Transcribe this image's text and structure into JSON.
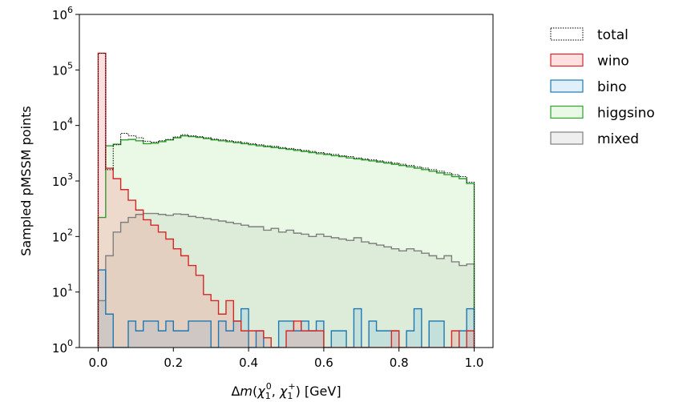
{
  "chart_data": {
    "type": "histogram",
    "xlabel_parts": [
      "Δ",
      "m",
      "(",
      "χ",
      "1",
      "0",
      ", ",
      "χ",
      "1",
      "+",
      ") [GeV]"
    ],
    "ylabel": "Sampled pMSSM points",
    "xlim": [
      -0.05,
      1.05
    ],
    "ylim": [
      1,
      1000000
    ],
    "yscale": "log",
    "bins": {
      "start": 0.0,
      "end": 1.0,
      "count": 50
    },
    "xticks": [
      0.0,
      0.2,
      0.4,
      0.6,
      0.8,
      1.0
    ],
    "xtick_labels": [
      "0.0",
      "0.2",
      "0.4",
      "0.6",
      "0.8",
      "1.0"
    ],
    "ytick_base": "10",
    "ytick_exponents": [
      "0",
      "1",
      "2",
      "3",
      "4",
      "5",
      "6"
    ],
    "legend_position": "outside-right",
    "series": [
      {
        "name": "total",
        "style": "dotted",
        "edge": "#000000",
        "fill": "none",
        "values": [
          200000,
          1600,
          4500,
          7200,
          6500,
          6000,
          5200,
          5000,
          5300,
          5600,
          6200,
          6800,
          6500,
          6300,
          6000,
          5700,
          5500,
          5300,
          5100,
          4900,
          4700,
          4500,
          4300,
          4200,
          4000,
          3850,
          3700,
          3550,
          3400,
          3250,
          3100,
          3000,
          2850,
          2750,
          2600,
          2500,
          2400,
          2300,
          2200,
          2100,
          2000,
          1900,
          1800,
          1700,
          1600,
          1500,
          1400,
          1300,
          1200,
          950
        ]
      },
      {
        "name": "wino",
        "style": "solid",
        "edge": "#d62728",
        "fill": "rgba(255,100,100,0.20)",
        "values": [
          200000,
          1700,
          1100,
          700,
          450,
          300,
          200,
          160,
          120,
          90,
          60,
          45,
          30,
          20,
          9,
          7,
          4,
          7,
          3,
          2,
          2,
          2,
          1.5,
          1,
          1,
          2,
          3,
          2,
          2,
          2,
          1,
          1,
          1,
          1,
          1,
          1,
          1,
          1,
          1,
          2,
          1,
          1,
          1,
          1,
          1,
          1,
          1,
          2,
          1,
          2
        ]
      },
      {
        "name": "bino",
        "style": "solid",
        "edge": "#1f77b4",
        "fill": "rgba(100,180,230,0.20)",
        "values": [
          25,
          4,
          1,
          1,
          3,
          2,
          3,
          3,
          2,
          3,
          2,
          2,
          3,
          3,
          3,
          1,
          3,
          2,
          3,
          5,
          1,
          2,
          1,
          1,
          3,
          3,
          2,
          3,
          2,
          3,
          1,
          2,
          2,
          1,
          5,
          1,
          3,
          2,
          2,
          2,
          1,
          2,
          5,
          1,
          3,
          3,
          1,
          1,
          2,
          5
        ]
      },
      {
        "name": "higgsino",
        "style": "solid",
        "edge": "#2ca02c",
        "fill": "rgba(150,220,130,0.20)",
        "values": [
          220,
          4300,
          4600,
          5500,
          5600,
          5300,
          4700,
          4800,
          5100,
          5500,
          6000,
          6500,
          6300,
          6100,
          5800,
          5500,
          5300,
          5100,
          4900,
          4700,
          4500,
          4300,
          4150,
          4000,
          3850,
          3700,
          3550,
          3400,
          3250,
          3100,
          3000,
          2850,
          2750,
          2600,
          2500,
          2400,
          2300,
          2200,
          2100,
          2000,
          1900,
          1800,
          1700,
          1600,
          1500,
          1400,
          1300,
          1200,
          1100,
          900
        ]
      },
      {
        "name": "mixed",
        "style": "solid",
        "edge": "#7f7f7f",
        "fill": "rgba(190,190,190,0.25)",
        "values": [
          7,
          45,
          120,
          180,
          220,
          250,
          260,
          260,
          250,
          240,
          255,
          250,
          230,
          220,
          210,
          200,
          190,
          180,
          170,
          160,
          150,
          150,
          130,
          140,
          120,
          130,
          115,
          110,
          100,
          110,
          100,
          95,
          90,
          85,
          95,
          80,
          75,
          70,
          65,
          60,
          55,
          60,
          55,
          50,
          45,
          40,
          45,
          35,
          30,
          32
        ]
      }
    ]
  }
}
